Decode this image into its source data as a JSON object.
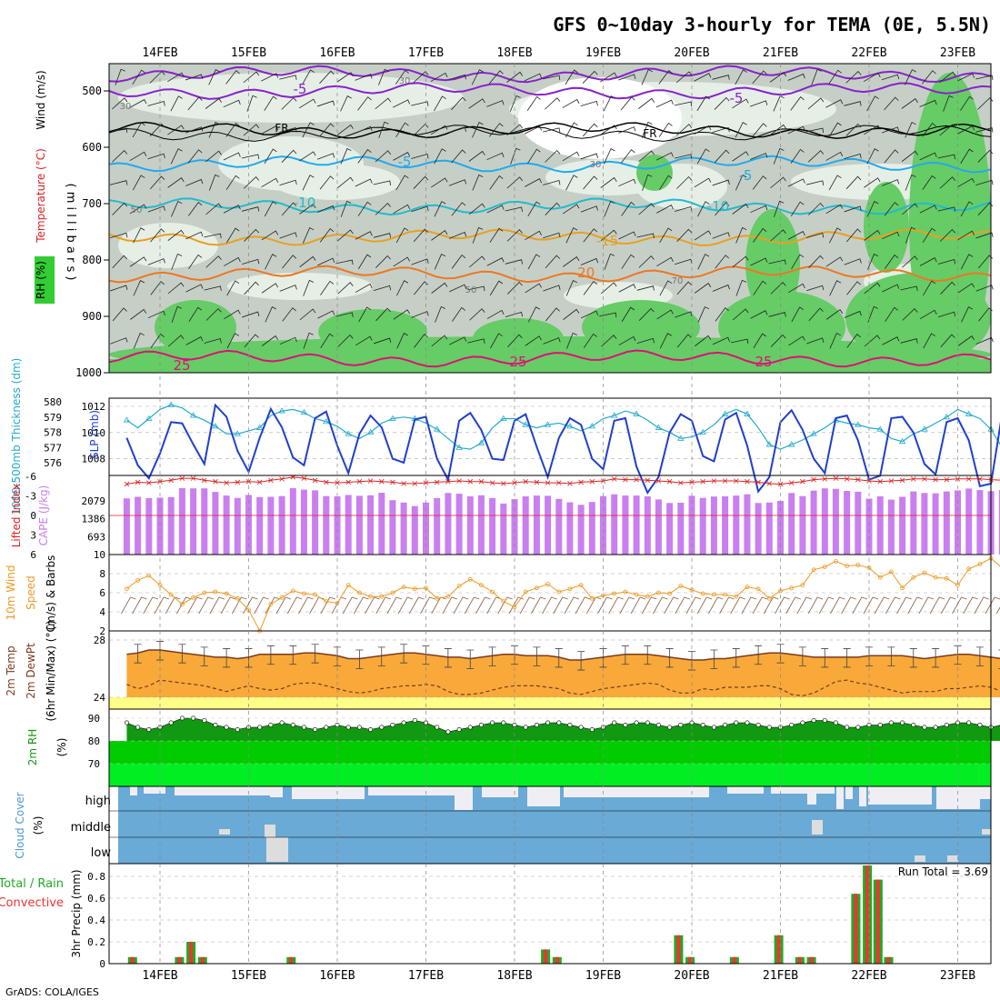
{
  "title": "GFS 0~10day 3-hourly for TEMA (0E, 5.5N)",
  "footer": "GrADS: COLA/IGES",
  "dates": [
    "14FEB",
    "15FEB",
    "16FEB",
    "17FEB",
    "18FEB",
    "19FEB",
    "20FEB",
    "21FEB",
    "22FEB",
    "23FEB"
  ],
  "colors": {
    "rh_green": "#33cc33",
    "rh_grey": "#c6cfc6",
    "rh_pale": "#e6efe6",
    "slp_blue": "#1f3fcf",
    "thickness_cyan": "#22aacc",
    "cape_purple": "#c97ff0",
    "lifted_red": "#dd2222",
    "wind_orange": "#ee9922",
    "temp_fill": "#f8a93a",
    "temp_line": "#7a3b20",
    "dewpt_yellow": "#ffff88",
    "rh2m_dark": "#119911",
    "rh2m_light": "#00dd00",
    "cloud_blue": "#6aaad6",
    "cloud_pale": "#efeef5",
    "precip_total": "#22aa22",
    "precip_conv": "#ee3333"
  },
  "panel1": {
    "y_label": "( m i l l i b a r s )",
    "rh_label": "RH (%)",
    "temp_label": "Temperature (°C)",
    "wind_label": "Wind (m/s)",
    "pressure_ticks": [
      "500",
      "600",
      "700",
      "800",
      "900",
      "1000"
    ],
    "rh_contour_labels": [
      "30",
      "50",
      "70",
      "30",
      "30",
      "50"
    ],
    "isotherm_labels": [
      "-5",
      "-5",
      "FR",
      "FR",
      "-5",
      "-5",
      "-10",
      "-10",
      "-15",
      "-20",
      "25",
      "25",
      "25"
    ]
  },
  "panel2": {
    "left_label": "1000-500mb Thickness (dm)",
    "right_label": "SLP (mb)",
    "thickness_ticks": [
      "580",
      "579",
      "578",
      "577",
      "576"
    ],
    "slp_ticks": [
      "1012",
      "1010",
      "1008"
    ]
  },
  "panel3": {
    "left_label": "Lifted Index",
    "right_label": "CAPE (J/kg)",
    "li_ticks": [
      "-6",
      "-3",
      "0",
      "3",
      "6"
    ],
    "cape_ticks": [
      "2079",
      "1386",
      "693"
    ]
  },
  "panel4": {
    "left_label": "10m Wind",
    "mid_label": "Speed",
    "right_label": "(m/s) & Barbs",
    "ticks": [
      "10",
      "8",
      "6",
      "4",
      "2"
    ]
  },
  "panel5": {
    "label1": "2m Temp",
    "label2": "2m DewPt",
    "label3": "(6hr Min/Max) (°C)",
    "ticks": [
      "28",
      "24"
    ]
  },
  "panel6": {
    "left_label": "2m RH",
    "unit": "(%)",
    "ticks": [
      "90",
      "80",
      "70"
    ]
  },
  "panel7": {
    "left_label": "Cloud Cover",
    "unit": "(%)",
    "levels": [
      "high",
      "middle",
      "low"
    ]
  },
  "panel8": {
    "left_label1": "Total / Rain",
    "left_label2": "Convective",
    "unit": "3hr Precip (mm)",
    "ticks": [
      "0.8",
      "0.6",
      "0.4",
      "0.2",
      "0"
    ],
    "run_total": "Run Total = 3.69"
  },
  "chart_data": [
    {
      "type": "line",
      "title": "Sea level pressure and 1000-500mb thickness",
      "x_unit": "day index (0 = 14FEB 00Z)",
      "slp": {
        "name": "SLP (mb)",
        "x_start": -0.375,
        "x_step": 0.125,
        "values": [
          1009.6,
          1007.5,
          1006.5,
          1008.4,
          1010.8,
          1010.7,
          1009.1,
          1007.6,
          1012.1,
          1011.2,
          1008.6,
          1007.0,
          1009.6,
          1011.8,
          1010.4,
          1008.1,
          1007.5,
          1011.1,
          1011.6,
          1009.0,
          1006.9,
          1009.9,
          1011.3,
          1010.4,
          1008.0,
          1007.7,
          1011.0,
          1011.2,
          1008.0,
          1006.4,
          1010.9,
          1011.5,
          1010.2,
          1008.0,
          1007.9,
          1010.9,
          1011.4,
          1008.9,
          1006.6,
          1009.6,
          1011.1,
          1010.6,
          1008.0,
          1007.2,
          1010.9,
          1011.1,
          1007.4,
          1005.4,
          1006.6,
          1010.0,
          1011.4,
          1010.9,
          1008.2,
          1007.8,
          1011.0,
          1011.5,
          1009.0,
          1005.5,
          1006.6,
          1010.8,
          1011.7,
          1010.2,
          1008.0,
          1006.9,
          1011.1,
          1011.3,
          1009.4,
          1006.4,
          1006.7,
          1011.1,
          1011.2,
          1010.0,
          1007.6,
          1006.8,
          1010.8,
          1011.1,
          1009.4,
          1005.9,
          1006.1,
          1011.4,
          1011.4,
          1009.8,
          1007.4,
          1007.3,
          1011.6,
          1010.6,
          1008.4,
          1005.8,
          1006.9,
          1011.2,
          1011.6,
          1009.9
        ]
      },
      "thickness": {
        "name": "1000-500mb Thickness (dm)",
        "x_start": -0.375,
        "x_step": 0.125,
        "values": [
          578.8,
          578.3,
          578.9,
          579.5,
          579.8,
          579.6,
          579.1,
          578.8,
          578.4,
          577.9,
          577.9,
          578.1,
          578.3,
          579.1,
          579.4,
          579.5,
          579.3,
          578.9,
          578.7,
          578.4,
          577.9,
          577.6,
          578.0,
          578.6,
          578.9,
          579.0,
          578.9,
          578.6,
          578.2,
          577.6,
          577.0,
          576.9,
          577.3,
          578.3,
          578.9,
          578.9,
          578.5,
          578.3,
          578.5,
          578.6,
          578.4,
          578.1,
          578.4,
          578.9,
          579.1,
          579.4,
          579.2,
          578.8,
          578.3,
          578.0,
          577.6,
          577.7,
          578.0,
          578.5,
          579.2,
          579.5,
          579.2,
          578.3,
          577.2,
          576.9,
          577.2,
          577.5,
          577.9,
          578.3,
          578.8,
          578.6,
          578.5,
          578.3,
          578.2,
          577.6,
          577.4,
          577.9,
          578.2,
          578.6,
          579.0,
          579.5,
          579.2,
          578.9,
          578.2,
          577.0,
          576.8,
          577.4,
          577.6,
          578.3,
          578.7,
          578.9,
          578.9,
          578.7,
          577.8,
          576.4,
          575.6,
          576.2
        ]
      }
    },
    {
      "type": "bar",
      "title": "CAPE and Lifted Index",
      "cape": {
        "name": "CAPE (J/kg)",
        "x_start": -0.375,
        "x_step": 0.125,
        "values": [
          2180,
          2240,
          2190,
          2210,
          2230,
          2580,
          2570,
          2570,
          2430,
          2290,
          2200,
          2310,
          2230,
          2240,
          2270,
          2580,
          2520,
          2490,
          2270,
          2260,
          2310,
          2280,
          2300,
          2400,
          2110,
          2020,
          1880,
          2020,
          2190,
          2390,
          2360,
          2260,
          2300,
          2190,
          1980,
          2150,
          2260,
          2290,
          2280,
          2160,
          2030,
          1930,
          2040,
          2270,
          2340,
          2290,
          2290,
          2260,
          2140,
          2000,
          2010,
          2280,
          2200,
          2250,
          2260,
          2290,
          2340,
          2000,
          2020,
          2080,
          2390,
          2270,
          2480,
          2570,
          2550,
          2470,
          2440,
          2170,
          2260,
          2130,
          2240,
          2450,
          2390,
          2380,
          2450,
          2490,
          2560,
          2500,
          2460,
          2510,
          2570,
          2530,
          2480,
          2390,
          2290,
          2210,
          2190,
          2460,
          2500,
          2250,
          2070
        ]
      },
      "lifted_index": {
        "name": "Lifted Index",
        "x_start": -0.375,
        "x_step": 0.125,
        "values": [
          -4.8,
          -5.1,
          -5.0,
          -5.2,
          -5.4,
          -5.7,
          -5.7,
          -5.4,
          -5.2,
          -5.0,
          -5.1,
          -5.2,
          -5.1,
          -5.4,
          -5.6,
          -5.9,
          -5.7,
          -5.4,
          -5.1,
          -5.0,
          -5.1,
          -5.2,
          -5.3,
          -5.2,
          -5.1,
          -4.9,
          -4.9,
          -5.0,
          -5.1,
          -5.2,
          -5.3,
          -5.2,
          -5.2,
          -5.0,
          -4.9,
          -5.0,
          -5.2,
          -5.1,
          -5.0,
          -5.0,
          -4.9,
          -5.1,
          -5.2,
          -5.3,
          -5.6,
          -5.5,
          -5.5,
          -5.4,
          -5.3,
          -5.2,
          -5.0,
          -5.1,
          -5.2,
          -5.3,
          -5.3,
          -5.3,
          -5.2,
          -5.1,
          -4.9,
          -4.8,
          -5.0,
          -5.2,
          -5.5,
          -5.6,
          -5.7,
          -5.6,
          -5.5,
          -5.3,
          -5.2,
          -5.3,
          -5.4,
          -5.6,
          -5.6,
          -5.5,
          -5.5,
          -5.6,
          -5.6,
          -5.6,
          -5.5,
          -5.4,
          -5.4,
          -5.4,
          -5.4,
          -5.4,
          -5.3,
          -5.2,
          -5.3,
          -5.4,
          -5.7,
          -5.5,
          -5.7
        ]
      }
    },
    {
      "type": "line",
      "title": "10m Wind Speed",
      "name": "10m Wind Speed (m/s)",
      "x_start": -0.375,
      "x_step": 0.125,
      "values": [
        6.4,
        7.3,
        7.8,
        6.8,
        5.8,
        4.8,
        5.5,
        6.0,
        6.1,
        5.9,
        5.4,
        4.2,
        2.0,
        4.8,
        5.5,
        6.2,
        5.9,
        5.8,
        5.1,
        4.9,
        6.8,
        6.0,
        5.6,
        5.6,
        6.0,
        6.6,
        6.4,
        6.5,
        5.4,
        5.6,
        6.7,
        7.4,
        6.8,
        6.1,
        5.1,
        4.5,
        6.1,
        6.5,
        6.9,
        6.1,
        6.4,
        6.8,
        5.4,
        5.7,
        5.9,
        6.1,
        5.8,
        5.6,
        6.0,
        5.9,
        6.7,
        6.3,
        5.9,
        5.8,
        5.8,
        5.6,
        6.6,
        6.4,
        5.4,
        6.2,
        6.5,
        6.8,
        8.4,
        8.7,
        9.3,
        8.8,
        8.9,
        8.6,
        7.6,
        8.2,
        6.5,
        7.6,
        8.1,
        7.6,
        7.5,
        6.8,
        8.5,
        9.0,
        9.6,
        8.6,
        7.8,
        6.2,
        7.3,
        7.5,
        9.1,
        9.7,
        8.7,
        8.0,
        6.0,
        6.5,
        6.6,
        6.3,
        6.0,
        6.4
      ]
    },
    {
      "type": "line",
      "title": "2m Temperature and Dew Point",
      "temp": {
        "name": "2m Temp (°C)",
        "x_start": -0.375,
        "x_step": 0.125,
        "values": [
          27.0,
          27.1,
          27.3,
          27.3,
          27.2,
          27.1,
          27.0,
          26.9,
          26.8,
          26.8,
          26.7,
          26.8,
          27.0,
          27.0,
          27.0,
          27.0,
          27.1,
          27.1,
          27.0,
          26.9,
          26.7,
          26.7,
          26.8,
          26.9,
          27.0,
          27.1,
          27.1,
          27.0,
          26.9,
          26.8,
          26.8,
          26.7,
          26.8,
          26.9,
          27.0,
          27.0,
          26.9,
          26.9,
          26.9,
          26.8,
          26.6,
          26.6,
          26.7,
          26.8,
          26.9,
          27.0,
          27.0,
          27.0,
          26.9,
          26.8,
          26.7,
          26.6,
          26.6,
          26.7,
          26.7,
          26.8,
          26.9,
          27.0,
          27.1,
          27.1,
          27.0,
          26.9,
          26.8,
          26.8,
          26.8,
          26.8,
          26.8,
          26.9,
          26.9,
          26.9,
          26.9,
          26.8,
          26.7,
          26.8,
          26.9,
          27.0,
          27.0,
          26.9,
          26.8,
          26.7,
          26.6,
          26.6,
          26.6,
          26.7,
          26.8,
          26.8,
          26.8,
          26.7,
          26.7,
          26.6,
          26.6
        ]
      },
      "dewpt": {
        "name": "2m DewPt (°C)",
        "x_start": -0.375,
        "x_step": 0.125,
        "values": [
          24.9,
          24.6,
          24.8,
          25.2,
          25.1,
          25.0,
          24.9,
          24.8,
          24.6,
          24.4,
          24.6,
          24.8,
          24.6,
          24.5,
          24.6,
          24.9,
          25.0,
          25.0,
          24.8,
          24.6,
          24.4,
          24.3,
          24.4,
          24.6,
          24.7,
          24.8,
          24.8,
          24.9,
          24.8,
          24.4,
          24.2,
          24.2,
          24.3,
          24.5,
          24.7,
          24.8,
          24.8,
          24.8,
          24.7,
          24.6,
          24.3,
          24.2,
          24.4,
          24.6,
          24.7,
          24.8,
          24.9,
          25.0,
          24.9,
          24.5,
          24.3,
          24.3,
          24.6,
          24.5,
          24.7,
          24.7,
          24.7,
          24.8,
          24.8,
          24.6,
          24.2,
          24.1,
          24.3,
          24.7,
          25.1,
          25.2,
          25.0,
          24.9,
          24.7,
          24.5,
          24.3,
          24.4,
          24.4,
          24.4,
          24.6,
          24.6,
          24.7,
          24.8,
          24.7,
          24.4,
          24.2,
          24.2,
          24.5,
          24.4,
          24.6,
          24.6,
          24.8,
          24.6,
          24.5,
          24.2,
          23.9
        ]
      },
      "ylim": [
        23.5,
        28.2
      ]
    },
    {
      "type": "area",
      "title": "2m RH",
      "name": "2m RH (%)",
      "x_start": -0.375,
      "x_step": 0.125,
      "values": [
        88,
        86,
        85,
        86,
        88,
        90,
        90,
        89,
        87,
        86,
        85,
        86,
        86,
        87,
        88,
        87,
        86,
        85,
        86,
        87,
        86,
        86,
        85,
        86,
        87,
        88,
        89,
        88,
        86,
        84,
        85,
        86,
        87,
        88,
        88,
        87,
        86,
        87,
        88,
        88,
        87,
        86,
        85,
        86,
        88,
        87,
        88,
        88,
        87,
        86,
        87,
        88,
        87,
        86,
        87,
        88,
        88,
        87,
        86,
        86,
        87,
        88,
        89,
        89,
        88,
        86,
        86,
        87,
        87,
        88,
        88,
        87,
        86,
        86,
        87,
        88,
        88,
        87,
        86,
        87,
        88,
        88,
        87,
        86,
        86,
        87,
        88,
        87,
        86,
        85,
        84
      ],
      "ylim": [
        60,
        93
      ]
    },
    {
      "type": "bar",
      "title": "3hr Precip",
      "name": "3hr Precip (mm)",
      "bars": [
        {
          "x": -0.31,
          "total": 0.06
        },
        {
          "x": 0.22,
          "total": 0.06
        },
        {
          "x": 0.35,
          "total": 0.2
        },
        {
          "x": 0.48,
          "total": 0.06
        },
        {
          "x": 1.48,
          "total": 0.06
        },
        {
          "x": 4.35,
          "total": 0.13
        },
        {
          "x": 4.48,
          "total": 0.06
        },
        {
          "x": 5.85,
          "total": 0.26
        },
        {
          "x": 5.98,
          "total": 0.06
        },
        {
          "x": 6.48,
          "total": 0.06
        },
        {
          "x": 6.98,
          "total": 0.26
        },
        {
          "x": 7.22,
          "total": 0.06
        },
        {
          "x": 7.35,
          "total": 0.06
        },
        {
          "x": 7.85,
          "total": 0.64
        },
        {
          "x": 7.98,
          "total": 0.9
        },
        {
          "x": 8.1,
          "total": 0.77
        },
        {
          "x": 8.22,
          "total": 0.06
        }
      ],
      "ylim": [
        0,
        0.92
      ]
    }
  ]
}
